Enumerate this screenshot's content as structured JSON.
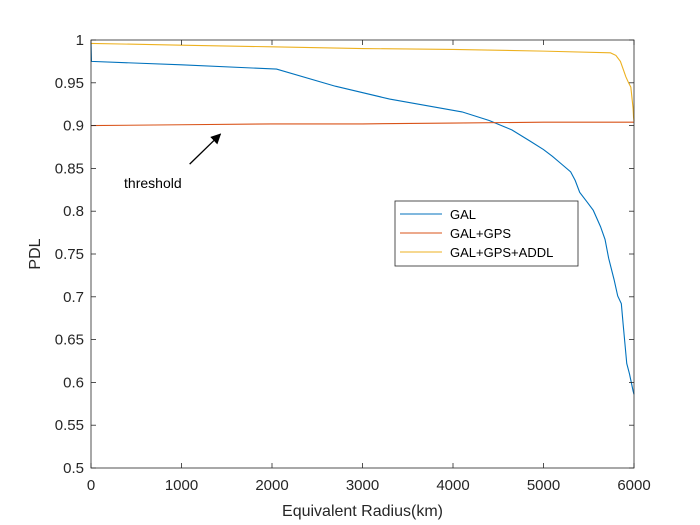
{
  "chart_data": {
    "type": "line",
    "title": "",
    "xlabel": "Equivalent Radius(km)",
    "ylabel": "PDL",
    "xlim": [
      0,
      6000
    ],
    "ylim": [
      0.5,
      1
    ],
    "xticks": [
      0,
      1000,
      2000,
      3000,
      4000,
      5000,
      6000
    ],
    "yticks": [
      0.5,
      0.55,
      0.6,
      0.65,
      0.7,
      0.75,
      0.8,
      0.85,
      0.9,
      0.95,
      1
    ],
    "xtick_labels": [
      "0",
      "1000",
      "2000",
      "3000",
      "4000",
      "5000",
      "6000"
    ],
    "ytick_labels": [
      "0.5",
      "0.55",
      "0.6",
      "0.65",
      "0.7",
      "0.75",
      "0.8",
      "0.85",
      "0.9",
      "0.95",
      "1"
    ],
    "grid": false,
    "legend_position": "center-right",
    "series": [
      {
        "name": "GAL",
        "color": "#0072BD",
        "points": [
          [
            0,
            0.997
          ],
          [
            5,
            0.975
          ],
          [
            1000,
            0.971
          ],
          [
            2050,
            0.966
          ],
          [
            2700,
            0.946
          ],
          [
            3300,
            0.931
          ],
          [
            4100,
            0.916
          ],
          [
            4400,
            0.906
          ],
          [
            4650,
            0.895
          ],
          [
            4850,
            0.882
          ],
          [
            5000,
            0.872
          ],
          [
            5100,
            0.864
          ],
          [
            5200,
            0.855
          ],
          [
            5300,
            0.846
          ],
          [
            5350,
            0.836
          ],
          [
            5400,
            0.822
          ],
          [
            5480,
            0.811
          ],
          [
            5550,
            0.801
          ],
          [
            5630,
            0.782
          ],
          [
            5680,
            0.767
          ],
          [
            5720,
            0.745
          ],
          [
            5780,
            0.72
          ],
          [
            5820,
            0.701
          ],
          [
            5860,
            0.692
          ],
          [
            5880,
            0.668
          ],
          [
            5900,
            0.645
          ],
          [
            5920,
            0.622
          ],
          [
            5950,
            0.61
          ],
          [
            5970,
            0.6
          ],
          [
            5990,
            0.59
          ],
          [
            6000,
            0.586
          ]
        ]
      },
      {
        "name": "GAL+GPS",
        "color": "#D95319",
        "points": [
          [
            0,
            0.9
          ],
          [
            1000,
            0.901
          ],
          [
            2000,
            0.902
          ],
          [
            3000,
            0.902
          ],
          [
            4000,
            0.903
          ],
          [
            5000,
            0.904
          ],
          [
            5900,
            0.904
          ],
          [
            6000,
            0.904
          ]
        ]
      },
      {
        "name": "GAL+GPS+ADDL",
        "color": "#EDB120",
        "points": [
          [
            0,
            0.996
          ],
          [
            1000,
            0.994
          ],
          [
            2000,
            0.992
          ],
          [
            3000,
            0.99
          ],
          [
            4000,
            0.989
          ],
          [
            5000,
            0.987
          ],
          [
            5740,
            0.985
          ],
          [
            5800,
            0.982
          ],
          [
            5850,
            0.975
          ],
          [
            5880,
            0.966
          ],
          [
            5910,
            0.957
          ],
          [
            5940,
            0.95
          ],
          [
            5965,
            0.945
          ],
          [
            5980,
            0.93
          ],
          [
            5990,
            0.92
          ],
          [
            5995,
            0.91
          ],
          [
            6000,
            0.905
          ]
        ]
      }
    ],
    "annotations": [
      {
        "text": "threshold",
        "x": 365,
        "y": 0.833,
        "arrow_to": [
          1430,
          0.89
        ]
      }
    ]
  }
}
